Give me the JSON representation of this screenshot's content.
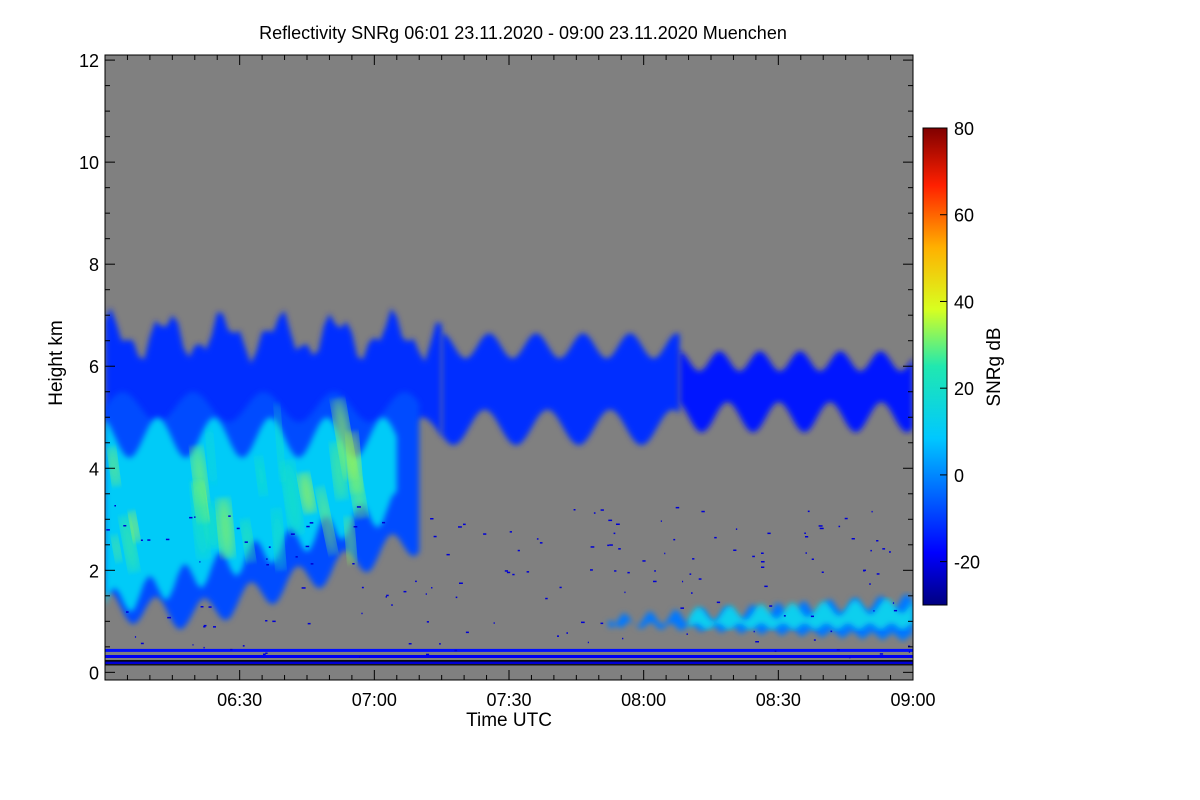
{
  "chart_data": {
    "type": "heatmap",
    "title": "Reflectivity SNRg   06:01 23.11.2020 - 09:00 23.11.2020 Muenchen",
    "xlabel": "Time UTC",
    "ylabel": "Height km",
    "x_range_minutes": [
      0,
      180
    ],
    "x_tick_labels": [
      "06:30",
      "07:00",
      "07:30",
      "08:00",
      "08:30",
      "09:00"
    ],
    "x_tick_values_minutes": [
      30,
      60,
      90,
      120,
      150,
      180
    ],
    "ylim": [
      -0.15,
      12.1
    ],
    "y_ticks": [
      0,
      2,
      4,
      6,
      8,
      10,
      12
    ],
    "colorbar": {
      "label": "SNRg dB",
      "range": [
        -30,
        80
      ],
      "ticks": [
        -20,
        0,
        20,
        40,
        60,
        80
      ]
    },
    "background_color": "#808080",
    "regions": [
      {
        "name": "upper cloud layer (left)",
        "x_min": 0,
        "x_max": 75,
        "y_min": 4.0,
        "y_max": 7.2,
        "snr_typical_db": -12
      },
      {
        "name": "main precipitation band",
        "x_min": 0,
        "x_max": 70,
        "y_min": 1.0,
        "y_max": 5.5,
        "snr_typical_db": 10
      },
      {
        "name": "upper cloud layer (middle)",
        "x_min": 75,
        "x_max": 128,
        "y_min": 4.5,
        "y_max": 6.7,
        "snr_typical_db": -12
      },
      {
        "name": "upper cloud layer (right)",
        "x_min": 128,
        "x_max": 180,
        "y_min": 4.5,
        "y_max": 6.3,
        "snr_typical_db": -15
      },
      {
        "name": "boundary layer band",
        "x_min": 112,
        "x_max": 180,
        "y_min": 0.7,
        "y_max": 1.6,
        "snr_typical_db": 12
      },
      {
        "name": "near-ground clutter",
        "x_min": 0,
        "x_max": 180,
        "y_min": 0.1,
        "y_max": 0.45,
        "snr_typical_db": -22
      }
    ]
  }
}
